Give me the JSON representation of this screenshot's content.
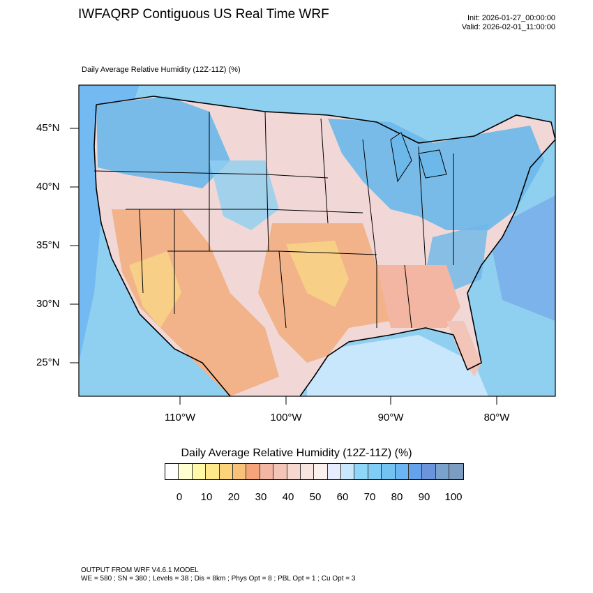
{
  "header": {
    "title": "IWFAQRP Contiguous US Real Time WRF",
    "init": "Init: 2026-01-27_00:00:00",
    "valid": "Valid: 2026-02-01_11:00:00"
  },
  "map": {
    "subtitle": "Daily Average Relative Humidity (12Z-11Z)   (%)",
    "lat_labels": [
      "45°N",
      "40°N",
      "35°N",
      "30°N",
      "25°N"
    ],
    "lon_labels": [
      "110°W",
      "100°W",
      "90°W",
      "80°W"
    ],
    "colors": {
      "ocean": "#8fcff0",
      "dry": "#f2b38a",
      "very_dry": "#f7cf86",
      "moist": "#6cb8ea",
      "mid": "#f1d8d6",
      "boundary": "#000000"
    }
  },
  "legend": {
    "title": "Daily Average Relative Humidity (12Z-11Z)  (%)",
    "tick_labels": [
      "0",
      "10",
      "20",
      "30",
      "40",
      "50",
      "60",
      "70",
      "80",
      "90",
      "100"
    ],
    "colors": [
      "#ffffff",
      "#ffffd0",
      "#fff9a8",
      "#fde98a",
      "#fbd47a",
      "#f9c27b",
      "#f5a47a",
      "#f2b6a2",
      "#f3c5b8",
      "#f6d8cf",
      "#f8e5df",
      "#fcf0ef",
      "#e8ecff",
      "#c8e6fc",
      "#8fd6f8",
      "#7fcdf7",
      "#74c2f2",
      "#6db4f2",
      "#64a2ec",
      "#6c94dc",
      "#7aa2cc",
      "#7c9cc2"
    ]
  },
  "footer": {
    "line1": "OUTPUT FROM WRF V4.6.1 MODEL",
    "line2": "WE = 580 ; SN = 380 ; Levels = 38 ; Dis = 8km ; Phys Opt = 8 ; PBL Opt = 1 ; Cu Opt = 3"
  }
}
